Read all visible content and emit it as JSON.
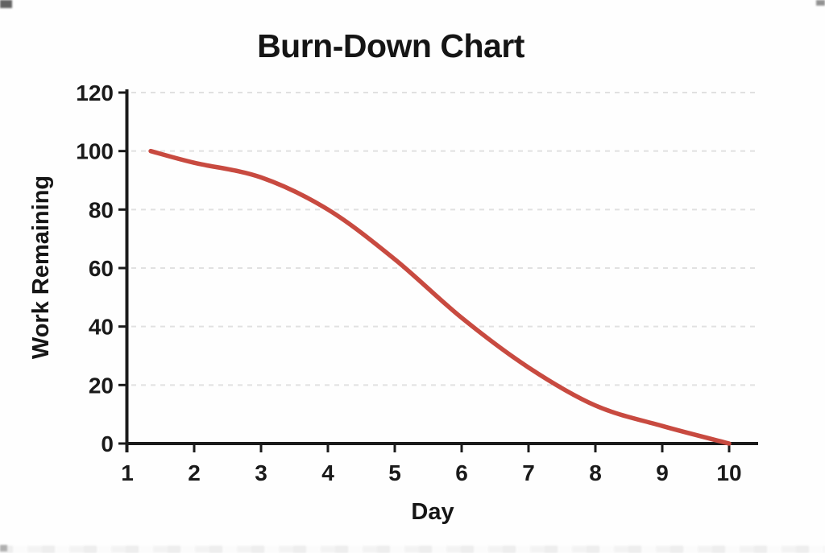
{
  "chart_data": {
    "type": "line",
    "title": "Burn-Down Chart",
    "xlabel": "Day",
    "ylabel": "Work Remaining",
    "x_ticks": [
      1,
      2,
      3,
      4,
      5,
      6,
      7,
      8,
      9,
      10
    ],
    "y_ticks": [
      0,
      20,
      40,
      60,
      80,
      100,
      120
    ],
    "xlim": [
      1,
      10.45
    ],
    "ylim": [
      0,
      120
    ],
    "grid": "horizontal-dashed",
    "legend": "none",
    "axis_color": "#1b1b1b",
    "gridline_color": "#e1e1e1",
    "series": [
      {
        "name": "Work Remaining",
        "color": "#c84a40",
        "x": [
          1.35,
          2,
          3,
          4,
          5,
          6,
          7,
          8,
          9,
          10
        ],
        "y": [
          100,
          96,
          91,
          80,
          63,
          43,
          26,
          13,
          6,
          0
        ]
      }
    ]
  }
}
